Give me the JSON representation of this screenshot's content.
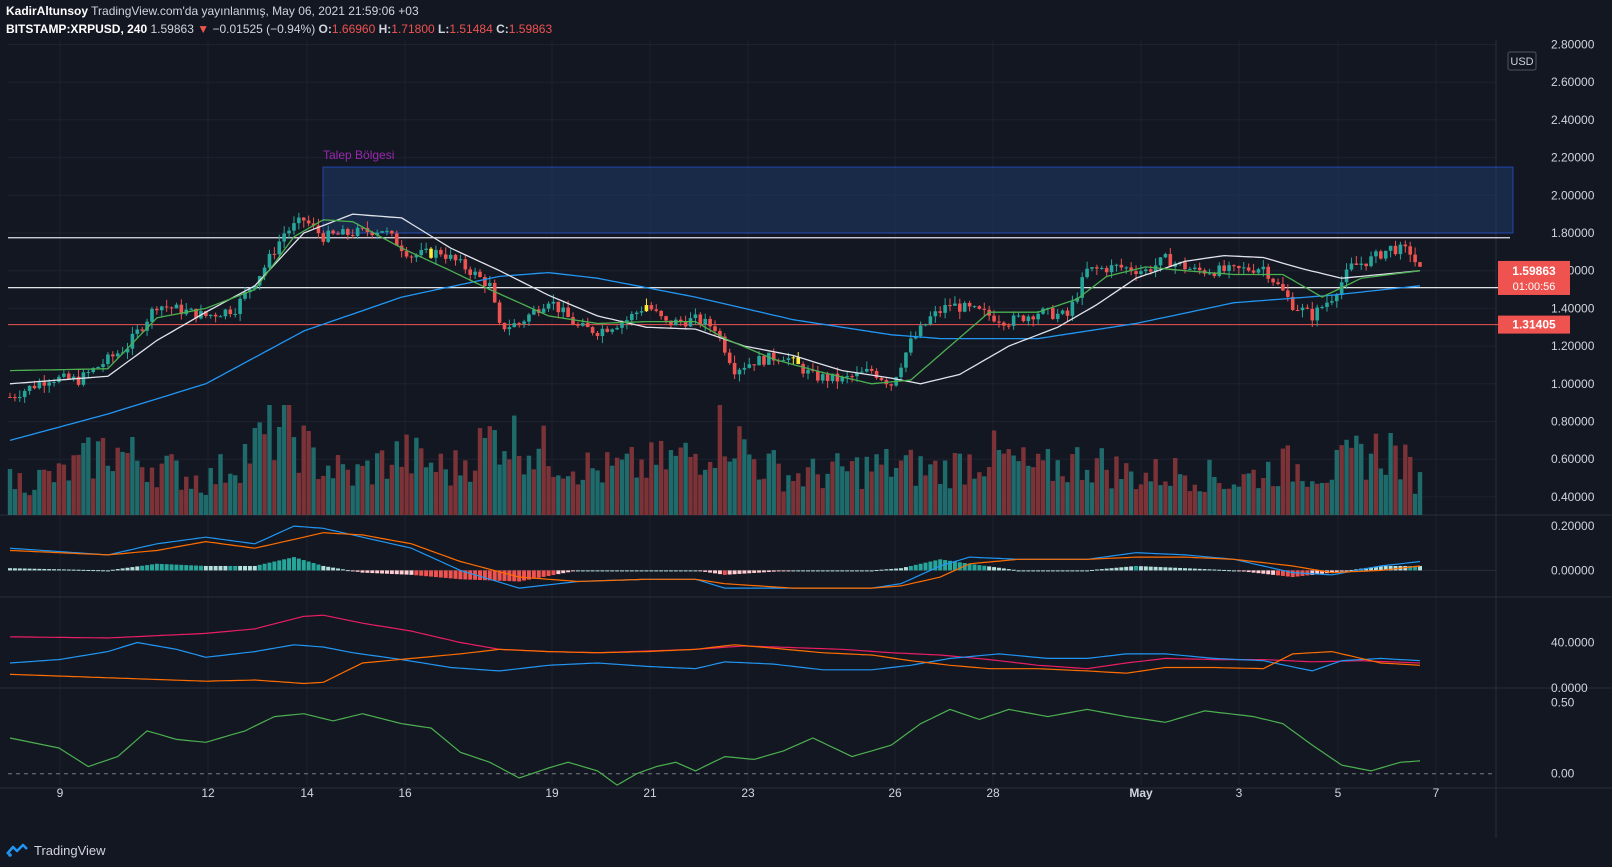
{
  "header": {
    "author": "KadirAltunsoy",
    "published": "TradingView.com'da yayınlanmış, May 06, 2021 21:59:06 +03",
    "symbol": "BITSTAMP:XRPUSD, 240",
    "last": "1.59863",
    "change": "−0.01525 (−0.94%)",
    "o_label": "O:",
    "o": "1.66960",
    "h_label": "H:",
    "h": "1.71800",
    "l_label": "L:",
    "l": "1.51484",
    "c_label": "C:",
    "c": "1.59863"
  },
  "footer": {
    "brand": "TradingView"
  },
  "colors": {
    "background": "#131722",
    "up": "#26a69a",
    "down": "#ef5350",
    "vol_up": "#1f6b6b",
    "vol_down": "#7b3338",
    "ma_fast": "#4caf50",
    "ma_mid": "#e0e3eb",
    "ma_slow": "#2196f3",
    "zone_fill": "#1e3a66",
    "zone_label": "#9c27b0",
    "support": "#ef5350"
  },
  "chart_data": {
    "type": "candlestick",
    "symbol": "BITSTAMP:XRPUSD",
    "interval": "240",
    "currency_label": "USD",
    "x_ticks": [
      "9",
      "12",
      "14",
      "16",
      "19",
      "21",
      "23",
      "26",
      "28",
      "May",
      "3",
      "5",
      "7"
    ],
    "y_ticks": [
      "2.80000",
      "2.60000",
      "2.40000",
      "2.20000",
      "2.00000",
      "1.80000",
      "1.60000",
      "1.40000",
      "1.20000",
      "1.00000",
      "0.80000",
      "0.60000",
      "0.40000"
    ],
    "ylim": [
      0.4,
      2.8
    ],
    "price_badge": {
      "value": "1.59863",
      "countdown": "01:00:56"
    },
    "support_badge": {
      "value": "1.31405"
    },
    "horizontal_lines": [
      1.775,
      1.51,
      1.31405
    ],
    "zone": {
      "label": "Talep Bölgesi",
      "low": 1.8,
      "high": 2.15
    },
    "price_anchors": [
      [
        0,
        0.93
      ],
      [
        8,
        1.03
      ],
      [
        14,
        1.02
      ],
      [
        24,
        1.2
      ],
      [
        30,
        1.42
      ],
      [
        40,
        1.36
      ],
      [
        46,
        1.4
      ],
      [
        52,
        1.62
      ],
      [
        56,
        1.8
      ],
      [
        60,
        1.87
      ],
      [
        64,
        1.78
      ],
      [
        70,
        1.8
      ],
      [
        76,
        1.82
      ],
      [
        82,
        1.68
      ],
      [
        88,
        1.7
      ],
      [
        94,
        1.6
      ],
      [
        98,
        1.52
      ],
      [
        100,
        1.3
      ],
      [
        104,
        1.32
      ],
      [
        110,
        1.45
      ],
      [
        116,
        1.3
      ],
      [
        120,
        1.28
      ],
      [
        126,
        1.34
      ],
      [
        130,
        1.42
      ],
      [
        134,
        1.32
      ],
      [
        140,
        1.34
      ],
      [
        144,
        1.3
      ],
      [
        148,
        1.08
      ],
      [
        152,
        1.12
      ],
      [
        158,
        1.15
      ],
      [
        164,
        1.04
      ],
      [
        170,
        1.02
      ],
      [
        176,
        1.07
      ],
      [
        180,
        1.0
      ],
      [
        184,
        1.22
      ],
      [
        188,
        1.35
      ],
      [
        192,
        1.42
      ],
      [
        198,
        1.38
      ],
      [
        204,
        1.33
      ],
      [
        210,
        1.38
      ],
      [
        216,
        1.36
      ],
      [
        220,
        1.6
      ],
      [
        226,
        1.62
      ],
      [
        232,
        1.6
      ],
      [
        236,
        1.66
      ],
      [
        242,
        1.6
      ],
      [
        250,
        1.6
      ],
      [
        256,
        1.62
      ],
      [
        262,
        1.42
      ],
      [
        266,
        1.36
      ],
      [
        270,
        1.46
      ],
      [
        274,
        1.62
      ],
      [
        278,
        1.66
      ],
      [
        282,
        1.72
      ],
      [
        286,
        1.7
      ],
      [
        288,
        1.6
      ]
    ],
    "ma_fast_anchors": [
      [
        0,
        1.07
      ],
      [
        20,
        1.08
      ],
      [
        30,
        1.35
      ],
      [
        40,
        1.4
      ],
      [
        50,
        1.5
      ],
      [
        58,
        1.78
      ],
      [
        64,
        1.87
      ],
      [
        70,
        1.86
      ],
      [
        80,
        1.72
      ],
      [
        90,
        1.6
      ],
      [
        98,
        1.5
      ],
      [
        110,
        1.36
      ],
      [
        120,
        1.32
      ],
      [
        130,
        1.33
      ],
      [
        140,
        1.33
      ],
      [
        146,
        1.24
      ],
      [
        156,
        1.13
      ],
      [
        166,
        1.06
      ],
      [
        176,
        1.0
      ],
      [
        184,
        1.02
      ],
      [
        192,
        1.2
      ],
      [
        200,
        1.38
      ],
      [
        210,
        1.38
      ],
      [
        218,
        1.45
      ],
      [
        224,
        1.57
      ],
      [
        232,
        1.62
      ],
      [
        240,
        1.6
      ],
      [
        250,
        1.58
      ],
      [
        260,
        1.58
      ],
      [
        268,
        1.46
      ],
      [
        276,
        1.56
      ],
      [
        288,
        1.6
      ]
    ],
    "ma_mid_anchors": [
      [
        0,
        1.0
      ],
      [
        20,
        1.04
      ],
      [
        30,
        1.23
      ],
      [
        40,
        1.38
      ],
      [
        50,
        1.52
      ],
      [
        60,
        1.8
      ],
      [
        70,
        1.9
      ],
      [
        80,
        1.88
      ],
      [
        90,
        1.72
      ],
      [
        100,
        1.6
      ],
      [
        110,
        1.47
      ],
      [
        120,
        1.36
      ],
      [
        130,
        1.3
      ],
      [
        140,
        1.29
      ],
      [
        150,
        1.2
      ],
      [
        160,
        1.15
      ],
      [
        170,
        1.07
      ],
      [
        180,
        1.03
      ],
      [
        186,
        1.0
      ],
      [
        194,
        1.05
      ],
      [
        204,
        1.2
      ],
      [
        214,
        1.3
      ],
      [
        222,
        1.42
      ],
      [
        230,
        1.56
      ],
      [
        240,
        1.65
      ],
      [
        248,
        1.68
      ],
      [
        256,
        1.67
      ],
      [
        264,
        1.61
      ],
      [
        272,
        1.56
      ],
      [
        280,
        1.58
      ],
      [
        288,
        1.6
      ]
    ],
    "ma_slow_anchors": [
      [
        0,
        0.7
      ],
      [
        20,
        0.84
      ],
      [
        40,
        1.0
      ],
      [
        60,
        1.28
      ],
      [
        80,
        1.46
      ],
      [
        100,
        1.57
      ],
      [
        110,
        1.59
      ],
      [
        120,
        1.56
      ],
      [
        140,
        1.46
      ],
      [
        160,
        1.34
      ],
      [
        180,
        1.26
      ],
      [
        190,
        1.24
      ],
      [
        210,
        1.24
      ],
      [
        230,
        1.32
      ],
      [
        250,
        1.43
      ],
      [
        270,
        1.47
      ],
      [
        288,
        1.52
      ]
    ],
    "volume_anchors": [
      [
        0,
        0.3
      ],
      [
        10,
        0.35
      ],
      [
        20,
        0.6
      ],
      [
        30,
        0.45
      ],
      [
        40,
        0.3
      ],
      [
        50,
        0.62
      ],
      [
        56,
        0.85
      ],
      [
        62,
        0.5
      ],
      [
        70,
        0.35
      ],
      [
        80,
        0.55
      ],
      [
        90,
        0.4
      ],
      [
        100,
        0.75
      ],
      [
        110,
        0.55
      ],
      [
        120,
        0.4
      ],
      [
        130,
        0.45
      ],
      [
        140,
        0.55
      ],
      [
        146,
        0.8
      ],
      [
        152,
        0.5
      ],
      [
        160,
        0.35
      ],
      [
        170,
        0.4
      ],
      [
        180,
        0.45
      ],
      [
        190,
        0.4
      ],
      [
        200,
        0.55
      ],
      [
        210,
        0.4
      ],
      [
        220,
        0.5
      ],
      [
        230,
        0.35
      ],
      [
        240,
        0.4
      ],
      [
        250,
        0.3
      ],
      [
        260,
        0.45
      ],
      [
        270,
        0.4
      ],
      [
        276,
        0.55
      ],
      [
        282,
        0.6
      ],
      [
        288,
        0.3
      ]
    ],
    "macd_y_ticks": [
      "0.20000",
      "0.00000"
    ],
    "macd_ylim": [
      -0.12,
      0.25
    ],
    "macd_line_anchors": [
      [
        0,
        0.1
      ],
      [
        20,
        0.07
      ],
      [
        30,
        0.12
      ],
      [
        40,
        0.15
      ],
      [
        50,
        0.12
      ],
      [
        58,
        0.2
      ],
      [
        64,
        0.19
      ],
      [
        72,
        0.15
      ],
      [
        82,
        0.1
      ],
      [
        92,
        0.0
      ],
      [
        104,
        -0.08
      ],
      [
        116,
        -0.05
      ],
      [
        130,
        -0.04
      ],
      [
        140,
        -0.04
      ],
      [
        146,
        -0.08
      ],
      [
        160,
        -0.08
      ],
      [
        176,
        -0.08
      ],
      [
        182,
        -0.06
      ],
      [
        190,
        0.02
      ],
      [
        196,
        0.06
      ],
      [
        206,
        0.05
      ],
      [
        220,
        0.05
      ],
      [
        230,
        0.08
      ],
      [
        240,
        0.07
      ],
      [
        250,
        0.05
      ],
      [
        262,
        -0.01
      ],
      [
        270,
        -0.02
      ],
      [
        280,
        0.02
      ],
      [
        288,
        0.04
      ]
    ],
    "signal_line_anchors": [
      [
        0,
        0.09
      ],
      [
        20,
        0.07
      ],
      [
        30,
        0.09
      ],
      [
        40,
        0.13
      ],
      [
        50,
        0.1
      ],
      [
        58,
        0.14
      ],
      [
        64,
        0.17
      ],
      [
        72,
        0.16
      ],
      [
        82,
        0.12
      ],
      [
        92,
        0.04
      ],
      [
        104,
        -0.03
      ],
      [
        116,
        -0.05
      ],
      [
        130,
        -0.04
      ],
      [
        140,
        -0.04
      ],
      [
        146,
        -0.06
      ],
      [
        160,
        -0.08
      ],
      [
        176,
        -0.08
      ],
      [
        182,
        -0.07
      ],
      [
        190,
        -0.03
      ],
      [
        196,
        0.03
      ],
      [
        206,
        0.05
      ],
      [
        220,
        0.05
      ],
      [
        230,
        0.06
      ],
      [
        240,
        0.06
      ],
      [
        250,
        0.05
      ],
      [
        262,
        0.02
      ],
      [
        270,
        -0.01
      ],
      [
        280,
        0.0
      ],
      [
        288,
        0.02
      ]
    ],
    "dmi_y_ticks": [
      "40.0000",
      "0.0000"
    ],
    "dmi_ylim": [
      0,
      80
    ],
    "adx_anchors": [
      [
        0,
        45
      ],
      [
        20,
        44
      ],
      [
        40,
        48
      ],
      [
        50,
        52
      ],
      [
        60,
        63
      ],
      [
        64,
        64
      ],
      [
        72,
        57
      ],
      [
        82,
        50
      ],
      [
        92,
        40
      ],
      [
        100,
        34
      ],
      [
        110,
        32
      ],
      [
        120,
        31
      ],
      [
        140,
        34
      ],
      [
        150,
        37
      ],
      [
        170,
        34
      ],
      [
        180,
        31
      ],
      [
        190,
        29
      ],
      [
        200,
        25
      ],
      [
        210,
        20
      ],
      [
        220,
        17
      ],
      [
        228,
        22
      ],
      [
        236,
        26
      ],
      [
        246,
        25
      ],
      [
        256,
        25
      ],
      [
        266,
        23
      ],
      [
        276,
        24
      ],
      [
        288,
        22
      ]
    ],
    "plus_di_anchors": [
      [
        0,
        22
      ],
      [
        10,
        25
      ],
      [
        20,
        32
      ],
      [
        26,
        40
      ],
      [
        34,
        34
      ],
      [
        40,
        27
      ],
      [
        50,
        32
      ],
      [
        58,
        38
      ],
      [
        64,
        36
      ],
      [
        70,
        31
      ],
      [
        80,
        25
      ],
      [
        90,
        18
      ],
      [
        100,
        15
      ],
      [
        110,
        20
      ],
      [
        120,
        22
      ],
      [
        130,
        19
      ],
      [
        140,
        17
      ],
      [
        146,
        23
      ],
      [
        156,
        21
      ],
      [
        166,
        16
      ],
      [
        176,
        16
      ],
      [
        184,
        20
      ],
      [
        192,
        26
      ],
      [
        202,
        30
      ],
      [
        212,
        26
      ],
      [
        220,
        26
      ],
      [
        228,
        30
      ],
      [
        236,
        30
      ],
      [
        246,
        26
      ],
      [
        256,
        24
      ],
      [
        266,
        15
      ],
      [
        272,
        24
      ],
      [
        280,
        26
      ],
      [
        288,
        24
      ]
    ],
    "minus_di_anchors": [
      [
        0,
        12
      ],
      [
        20,
        9
      ],
      [
        40,
        6
      ],
      [
        50,
        7
      ],
      [
        60,
        4
      ],
      [
        64,
        5
      ],
      [
        72,
        22
      ],
      [
        82,
        26
      ],
      [
        92,
        30
      ],
      [
        100,
        34
      ],
      [
        110,
        32
      ],
      [
        120,
        31
      ],
      [
        130,
        32
      ],
      [
        140,
        34
      ],
      [
        148,
        38
      ],
      [
        156,
        35
      ],
      [
        166,
        31
      ],
      [
        176,
        29
      ],
      [
        184,
        24
      ],
      [
        192,
        20
      ],
      [
        200,
        17
      ],
      [
        210,
        17
      ],
      [
        220,
        15
      ],
      [
        228,
        13
      ],
      [
        236,
        18
      ],
      [
        246,
        18
      ],
      [
        256,
        17
      ],
      [
        262,
        30
      ],
      [
        270,
        32
      ],
      [
        280,
        22
      ],
      [
        288,
        20
      ]
    ],
    "rsi_y_ticks": [
      "0.50",
      "0.00"
    ],
    "rsi_ylim": [
      -0.1,
      0.6
    ],
    "osc_anchors": [
      [
        0,
        0.25
      ],
      [
        10,
        0.18
      ],
      [
        16,
        0.05
      ],
      [
        22,
        0.12
      ],
      [
        28,
        0.3
      ],
      [
        34,
        0.24
      ],
      [
        40,
        0.22
      ],
      [
        48,
        0.3
      ],
      [
        54,
        0.4
      ],
      [
        60,
        0.42
      ],
      [
        66,
        0.37
      ],
      [
        72,
        0.42
      ],
      [
        80,
        0.35
      ],
      [
        86,
        0.32
      ],
      [
        92,
        0.15
      ],
      [
        98,
        0.08
      ],
      [
        104,
        -0.03
      ],
      [
        110,
        0.04
      ],
      [
        114,
        0.08
      ],
      [
        120,
        0.02
      ],
      [
        124,
        -0.08
      ],
      [
        128,
        0.0
      ],
      [
        132,
        0.05
      ],
      [
        136,
        0.08
      ],
      [
        140,
        0.02
      ],
      [
        146,
        0.12
      ],
      [
        152,
        0.1
      ],
      [
        158,
        0.16
      ],
      [
        164,
        0.25
      ],
      [
        172,
        0.12
      ],
      [
        180,
        0.2
      ],
      [
        186,
        0.35
      ],
      [
        192,
        0.45
      ],
      [
        198,
        0.38
      ],
      [
        204,
        0.45
      ],
      [
        212,
        0.4
      ],
      [
        220,
        0.45
      ],
      [
        228,
        0.4
      ],
      [
        236,
        0.36
      ],
      [
        244,
        0.44
      ],
      [
        254,
        0.4
      ],
      [
        260,
        0.35
      ],
      [
        266,
        0.2
      ],
      [
        272,
        0.06
      ],
      [
        278,
        0.02
      ],
      [
        284,
        0.08
      ],
      [
        288,
        0.09
      ]
    ]
  }
}
